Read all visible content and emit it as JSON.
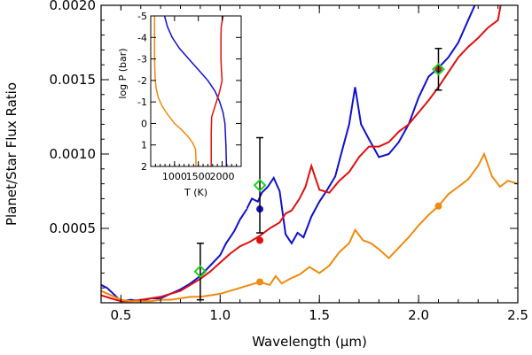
{
  "chart_data": {
    "type": "line",
    "xlabel": "Wavelength (μm)",
    "ylabel": "Planet/Star Flux Ratio",
    "xlim": [
      0.4,
      2.5
    ],
    "ylim": [
      0.0,
      0.002
    ],
    "x_ticks": [
      "0.5",
      "1.0",
      "1.5",
      "2.0",
      "2.5"
    ],
    "y_ticks": [
      "0.0005",
      "0.0010",
      "0.0015",
      "0.0020"
    ],
    "series": [
      {
        "color": "#1010d0",
        "x": [
          0.4,
          0.43,
          0.47,
          0.5,
          0.55,
          0.6,
          0.65,
          0.7,
          0.75,
          0.8,
          0.85,
          0.9,
          0.95,
          1.0,
          1.03,
          1.07,
          1.1,
          1.13,
          1.16,
          1.19,
          1.21,
          1.24,
          1.27,
          1.3,
          1.33,
          1.36,
          1.39,
          1.42,
          1.46,
          1.5,
          1.54,
          1.58,
          1.62,
          1.65,
          1.68,
          1.71,
          1.75,
          1.8,
          1.85,
          1.9,
          1.95,
          2.0,
          2.05,
          2.1,
          2.15,
          2.2,
          2.25,
          2.3,
          2.35,
          2.4
        ],
        "y": [
          0.00012,
          0.0001,
          5e-05,
          1e-05,
          2e-05,
          1e-05,
          3e-05,
          3e-05,
          6e-05,
          9e-05,
          0.00013,
          0.00018,
          0.00025,
          0.00032,
          0.0004,
          0.00048,
          0.00056,
          0.00062,
          0.0007,
          0.00068,
          0.00074,
          0.00078,
          0.00084,
          0.00075,
          0.00046,
          0.0004,
          0.00047,
          0.00044,
          0.00058,
          0.00068,
          0.00076,
          0.00085,
          0.00105,
          0.0012,
          0.00145,
          0.0012,
          0.0011,
          0.00098,
          0.001,
          0.00108,
          0.0012,
          0.00138,
          0.00152,
          0.00158,
          0.00165,
          0.00175,
          0.0019,
          0.00205,
          0.00215,
          0.0022
        ]
      },
      {
        "color": "#e01010",
        "x": [
          0.4,
          0.45,
          0.5,
          0.55,
          0.6,
          0.65,
          0.7,
          0.75,
          0.8,
          0.85,
          0.9,
          0.95,
          1.0,
          1.05,
          1.1,
          1.15,
          1.2,
          1.25,
          1.3,
          1.33,
          1.36,
          1.4,
          1.43,
          1.46,
          1.5,
          1.55,
          1.6,
          1.65,
          1.7,
          1.75,
          1.8,
          1.85,
          1.9,
          1.95,
          2.0,
          2.05,
          2.1,
          2.15,
          2.2,
          2.25,
          2.3,
          2.35,
          2.4,
          2.42
        ],
        "y": [
          5e-05,
          3e-05,
          1e-05,
          1e-05,
          2e-05,
          3e-05,
          4e-05,
          6e-05,
          8e-05,
          0.00012,
          0.00016,
          0.00021,
          0.00027,
          0.00033,
          0.00038,
          0.00041,
          0.00045,
          0.0005,
          0.00054,
          0.0006,
          0.00062,
          0.0007,
          0.00078,
          0.00092,
          0.00076,
          0.00074,
          0.00082,
          0.00088,
          0.00098,
          0.00105,
          0.00105,
          0.00108,
          0.00115,
          0.0012,
          0.00128,
          0.00136,
          0.00145,
          0.00155,
          0.00165,
          0.00172,
          0.00178,
          0.00185,
          0.0019,
          0.00205
        ]
      },
      {
        "color": "#f08a10",
        "x": [
          0.4,
          0.45,
          0.5,
          0.55,
          0.6,
          0.65,
          0.7,
          0.75,
          0.8,
          0.85,
          0.9,
          0.95,
          1.0,
          1.05,
          1.1,
          1.15,
          1.2,
          1.25,
          1.28,
          1.31,
          1.35,
          1.4,
          1.45,
          1.5,
          1.55,
          1.6,
          1.65,
          1.68,
          1.72,
          1.76,
          1.8,
          1.85,
          1.9,
          1.95,
          2.0,
          2.05,
          2.1,
          2.15,
          2.2,
          2.25,
          2.3,
          2.33,
          2.37,
          2.41,
          2.45,
          2.5
        ],
        "y": [
          8e-05,
          5e-05,
          2e-05,
          1e-05,
          1e-05,
          1e-05,
          2e-05,
          2e-05,
          3e-05,
          4e-05,
          4e-05,
          5e-05,
          6e-05,
          8e-05,
          0.0001,
          0.00012,
          0.00014,
          0.00012,
          0.00018,
          0.00013,
          0.00016,
          0.00019,
          0.00024,
          0.0002,
          0.00025,
          0.00034,
          0.0004,
          0.00049,
          0.00042,
          0.0004,
          0.00036,
          0.0003,
          0.00037,
          0.00044,
          0.00052,
          0.00059,
          0.00065,
          0.00073,
          0.00078,
          0.00083,
          0.00092,
          0.001,
          0.00085,
          0.00078,
          0.00082,
          0.0008
        ]
      }
    ],
    "colored_points": [
      {
        "x": 1.2,
        "y": 0.00063,
        "color": "#1010d0"
      },
      {
        "x": 1.2,
        "y": 0.00042,
        "color": "#e01010"
      },
      {
        "x": 1.2,
        "y": 0.00014,
        "color": "#f08a10"
      },
      {
        "x": 2.1,
        "y": 0.00156,
        "color": "#1010d0"
      },
      {
        "x": 2.1,
        "y": 0.00158,
        "color": "#e01010"
      },
      {
        "x": 2.1,
        "y": 0.00065,
        "color": "#f08a10"
      }
    ],
    "observations": [
      {
        "x": 0.9,
        "y": 0.00021,
        "err": 0.00019
      },
      {
        "x": 1.2,
        "y": 0.00079,
        "err": 0.00032
      },
      {
        "x": 2.1,
        "y": 0.00157,
        "err": 0.00014
      }
    ],
    "observation_marker_color": "#20d020",
    "inset": {
      "type": "line",
      "xlabel": "T (K)",
      "ylabel": "log P (bar)",
      "xlim": [
        500,
        2400
      ],
      "ylim": [
        2,
        -5
      ],
      "x_ticks": [
        "1000",
        "1500",
        "2000"
      ],
      "y_ticks": [
        "-5",
        "-4",
        "-3",
        "-2",
        "-1",
        "0",
        "1",
        "2"
      ],
      "series": [
        {
          "color": "#f08a10",
          "T": [
            580,
            580,
            580,
            585,
            595,
            615,
            660,
            740,
            860,
            1000,
            1150,
            1280,
            1380,
            1440,
            1450,
            1450
          ],
          "logP": [
            -5,
            -4,
            -3,
            -2.5,
            -2,
            -1.6,
            -1.2,
            -0.8,
            -0.4,
            0,
            0.3,
            0.6,
            0.9,
            1.2,
            1.6,
            2
          ]
        },
        {
          "color": "#1010d0",
          "T": [
            790,
            850,
            950,
            1100,
            1300,
            1500,
            1700,
            1850,
            1950,
            2020,
            2060,
            2080,
            2090
          ],
          "logP": [
            -5,
            -4.5,
            -4,
            -3.5,
            -3,
            -2.5,
            -2,
            -1.5,
            -1,
            -0.5,
            0,
            1,
            2
          ]
        },
        {
          "color": "#e01010",
          "T": [
            2020,
            1980,
            1975,
            1975,
            1985,
            2000,
            1950,
            1850,
            1780,
            1770,
            1770
          ],
          "logP": [
            -5,
            -4.5,
            -4,
            -3,
            -2.5,
            -2,
            -1.5,
            -0.8,
            -0.3,
            0.5,
            2
          ]
        }
      ]
    }
  }
}
